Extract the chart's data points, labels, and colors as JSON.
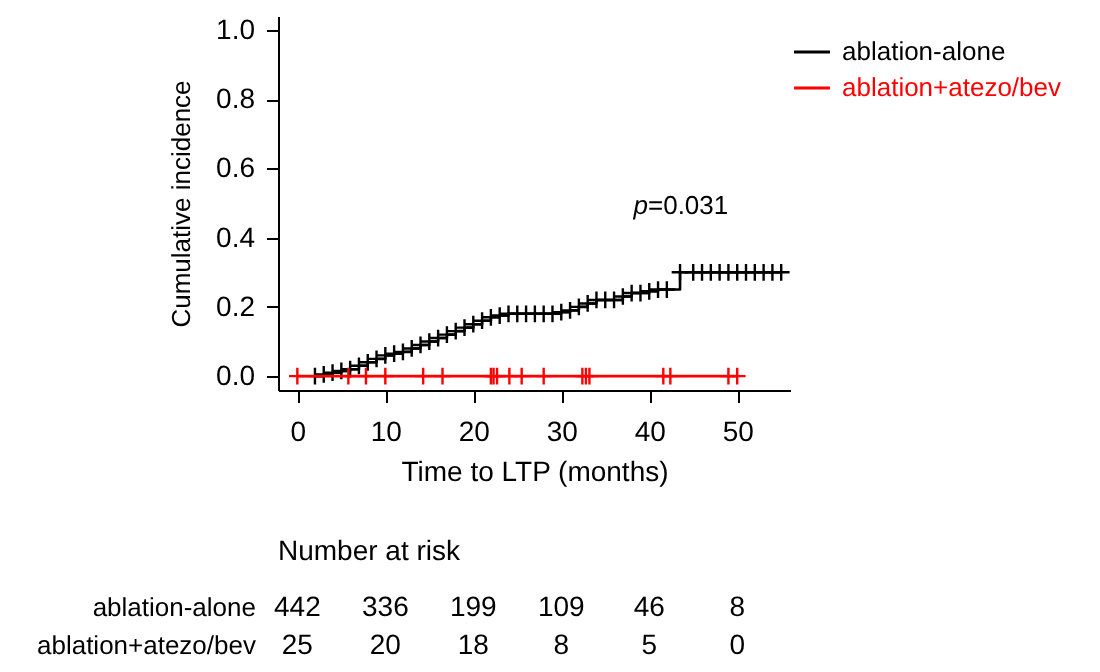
{
  "chart_data": {
    "type": "step",
    "xlabel": "Time to LTP (months)",
    "ylabel": "Cumulative incidence",
    "xlim": [
      -2.2,
      56
    ],
    "xticks": [
      0,
      10,
      20,
      30,
      40,
      50
    ],
    "ylim": [
      -0.04,
      1.04
    ],
    "yticks": [
      {
        "value": 0,
        "label": "0.0"
      },
      {
        "value": 0.2,
        "label": "0.2"
      },
      {
        "value": 0.4,
        "label": "0.4"
      },
      {
        "value": 0.6,
        "label": "0.6"
      },
      {
        "value": 0.8,
        "label": "0.8"
      },
      {
        "value": 1,
        "label": "1.0"
      }
    ],
    "grid": false,
    "legend": "top right",
    "marker": "cross",
    "line_style": "solid",
    "series": [
      {
        "name": "ablation-alone",
        "color": "#000000",
        "x": [
          2,
          3,
          4,
          5,
          6,
          7,
          8,
          9,
          10,
          11,
          12,
          13,
          14,
          15,
          16,
          17,
          18,
          19,
          20,
          21,
          22,
          23,
          24,
          25,
          26,
          27,
          28,
          29,
          30,
          31,
          32,
          33,
          34,
          35,
          36,
          37,
          38,
          39,
          40,
          41,
          42,
          43.5,
          45,
          46,
          47,
          48,
          49,
          50,
          51,
          52,
          53,
          54,
          55
        ],
        "values": [
          0,
          0.005,
          0.01,
          0.015,
          0.02,
          0.03,
          0.04,
          0.05,
          0.06,
          0.065,
          0.07,
          0.08,
          0.09,
          0.1,
          0.11,
          0.12,
          0.13,
          0.14,
          0.15,
          0.16,
          0.17,
          0.175,
          0.18,
          0.18,
          0.18,
          0.18,
          0.18,
          0.18,
          0.185,
          0.19,
          0.2,
          0.21,
          0.22,
          0.22,
          0.22,
          0.23,
          0.24,
          0.24,
          0.245,
          0.25,
          0.25,
          0.3,
          0.3,
          0.3,
          0.3,
          0.3,
          0.3,
          0.3,
          0.3,
          0.3,
          0.3,
          0.3,
          0.3
        ]
      },
      {
        "name": "ablation+atezo/bev",
        "color": "#ff0000",
        "x": [
          0,
          5.8,
          7.8,
          10,
          14.3,
          16.5,
          22,
          22.3,
          22.7,
          24.1,
          25.5,
          28,
          32.4,
          32.8,
          33.2,
          41.6,
          42.4,
          49,
          50
        ],
        "values": [
          0,
          0,
          0,
          0,
          0,
          0,
          0,
          0,
          0,
          0,
          0,
          0,
          0,
          0,
          0,
          0,
          0,
          0,
          0
        ]
      }
    ],
    "annotations": [
      "p=0.031",
      "Number at risk",
      "442",
      "336",
      "199",
      "109",
      "46",
      "8",
      "25",
      "20",
      "18",
      "8",
      "5",
      "0"
    ]
  }
}
